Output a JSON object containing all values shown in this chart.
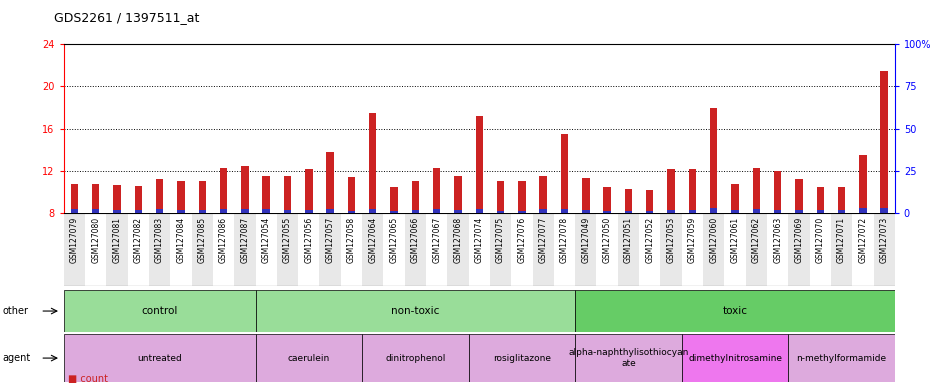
{
  "title": "GDS2261 / 1397511_at",
  "samples": [
    "GSM127079",
    "GSM127080",
    "GSM127081",
    "GSM127082",
    "GSM127083",
    "GSM127084",
    "GSM127085",
    "GSM127086",
    "GSM127087",
    "GSM127054",
    "GSM127055",
    "GSM127056",
    "GSM127057",
    "GSM127058",
    "GSM127064",
    "GSM127065",
    "GSM127066",
    "GSM127067",
    "GSM127068",
    "GSM127074",
    "GSM127075",
    "GSM127076",
    "GSM127077",
    "GSM127078",
    "GSM127049",
    "GSM127050",
    "GSM127051",
    "GSM127052",
    "GSM127053",
    "GSM127059",
    "GSM127060",
    "GSM127061",
    "GSM127062",
    "GSM127063",
    "GSM127069",
    "GSM127070",
    "GSM127071",
    "GSM127072",
    "GSM127073"
  ],
  "count_values": [
    10.8,
    10.8,
    10.7,
    10.6,
    11.2,
    11.0,
    11.0,
    12.3,
    12.5,
    11.5,
    11.5,
    12.2,
    13.8,
    11.4,
    17.5,
    10.5,
    11.0,
    12.3,
    11.5,
    17.2,
    11.0,
    11.0,
    11.5,
    15.5,
    11.3,
    10.5,
    10.3,
    10.2,
    12.2,
    12.2,
    18.0,
    10.8,
    12.3,
    12.0,
    11.2,
    10.5,
    10.5,
    13.5,
    21.5
  ],
  "percentile_values": [
    0.35,
    0.35,
    0.28,
    0.28,
    0.35,
    0.28,
    0.28,
    0.42,
    0.35,
    0.35,
    0.28,
    0.32,
    0.38,
    0.22,
    0.42,
    0.22,
    0.28,
    0.35,
    0.28,
    0.38,
    0.22,
    0.22,
    0.35,
    0.38,
    0.28,
    0.22,
    0.22,
    0.22,
    0.28,
    0.28,
    0.45,
    0.28,
    0.38,
    0.28,
    0.28,
    0.28,
    0.28,
    0.45,
    0.45
  ],
  "bar_bottom": 8.0,
  "bar_color_count": "#cc2222",
  "bar_color_percentile": "#3333bb",
  "ylim_left": [
    8,
    24
  ],
  "yticks_left": [
    8,
    12,
    16,
    20,
    24
  ],
  "yticks_right": [
    0,
    25,
    50,
    75,
    100
  ],
  "ylim_right": [
    0,
    100
  ],
  "other_row": [
    {
      "label": "control",
      "start": 0,
      "end": 9,
      "color": "#99dd99"
    },
    {
      "label": "non-toxic",
      "start": 9,
      "end": 24,
      "color": "#99dd99"
    },
    {
      "label": "toxic",
      "start": 24,
      "end": 39,
      "color": "#66cc66"
    }
  ],
  "agent_row": [
    {
      "label": "untreated",
      "start": 0,
      "end": 9,
      "color": "#ddaadd"
    },
    {
      "label": "caerulein",
      "start": 9,
      "end": 14,
      "color": "#ddaadd"
    },
    {
      "label": "dinitrophenol",
      "start": 14,
      "end": 19,
      "color": "#ddaadd"
    },
    {
      "label": "rosiglitazone",
      "start": 19,
      "end": 24,
      "color": "#ddaadd"
    },
    {
      "label": "alpha-naphthylisothiocyan\nate",
      "start": 24,
      "end": 29,
      "color": "#ddaadd"
    },
    {
      "label": "dimethylnitrosamine",
      "start": 29,
      "end": 34,
      "color": "#ee77ee"
    },
    {
      "label": "n-methylformamide",
      "start": 34,
      "end": 39,
      "color": "#ddaadd"
    }
  ],
  "dotted_gridlines": [
    12,
    16,
    20
  ],
  "chart_bg": "#ffffff",
  "xlabel_stripe1": "#e8e8e8",
  "xlabel_stripe2": "#ffffff"
}
